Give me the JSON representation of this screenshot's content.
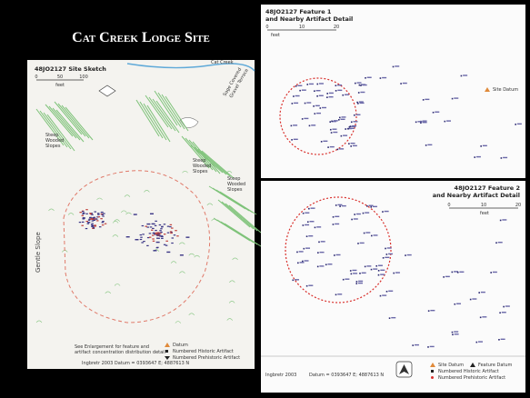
{
  "title": "Cat Creek Lodge Site",
  "site_sketch": {
    "title": "48JO2127 Site Sketch",
    "scale": {
      "labels": [
        "0",
        "50",
        "100"
      ],
      "unit": "feet"
    },
    "creek": "Cat Creek",
    "terrace": [
      "Sage Covered",
      "Gravel Terrace"
    ],
    "slopes": [
      [
        "Steep",
        "Wooded",
        "Slopes"
      ],
      [
        "Steep",
        "Wooded",
        "Slopes"
      ],
      [
        "Steep",
        "Wooded",
        "Slopes"
      ]
    ],
    "gentle_slope": "Gentle Slope",
    "note": [
      "See Enlargement for feature and",
      "artifact concentration distribution detail"
    ],
    "legend": [
      "Datum",
      "Numbered Historic Artifact",
      "Numbered Prehistoric Artifact"
    ],
    "credit": "Ingbretr 2003    Datum = 0393647 E; 4887613 N"
  },
  "feature_1": {
    "title": [
      "48JO2127 Feature 1",
      "and Nearby Artifact Detail"
    ],
    "scale": {
      "labels": [
        "0",
        "10",
        "20"
      ],
      "unit": "feet"
    },
    "site_datum": "Site Datum"
  },
  "feature_2": {
    "title": [
      "48JO2127 Feature 2",
      "and Nearby Artifact Detail"
    ],
    "scale": {
      "labels": [
        "0",
        "10",
        "20"
      ],
      "unit": "feet"
    }
  },
  "legend": {
    "credit": "Ingbretr 2003",
    "datum": "Datum = 0393647 E; 4887613 N",
    "items": [
      "Site Datum",
      "Feature Datum",
      "Numbered Historic Artifact",
      "Numbered Prehistoric Artifact"
    ]
  }
}
